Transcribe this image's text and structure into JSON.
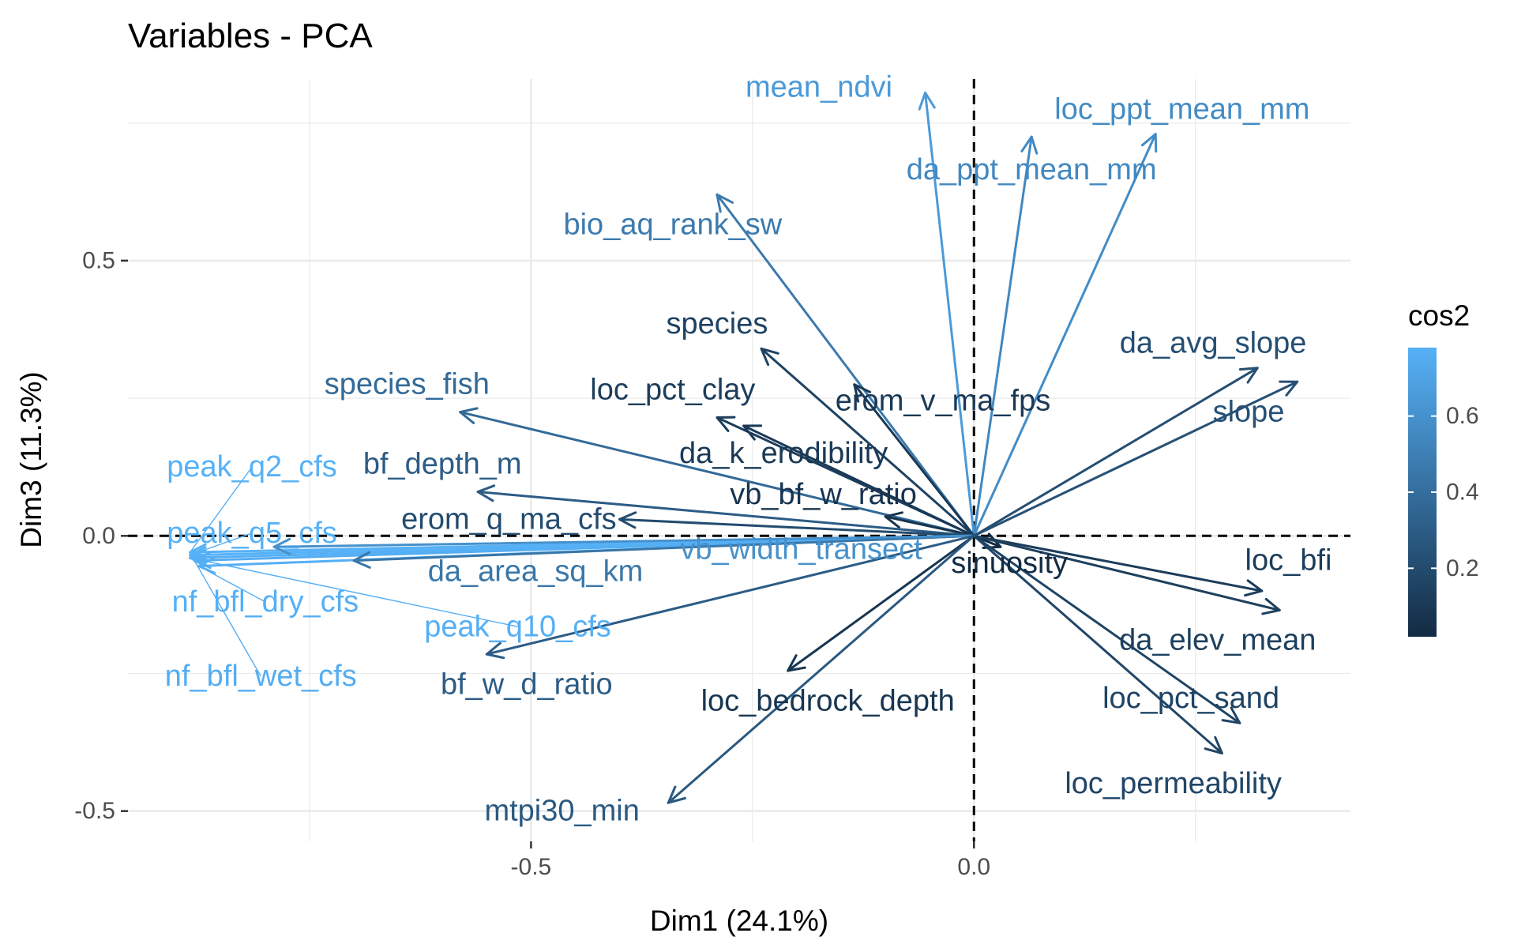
{
  "chart_data": {
    "type": "scatter",
    "title": "Variables - PCA",
    "xlabel": "Dim1 (24.1%)",
    "ylabel": "Dim3 (11.3%)",
    "xlim": [
      -0.955,
      0.425
    ],
    "ylim": [
      -0.555,
      0.83
    ],
    "x_ticks": [
      -0.5,
      0.0
    ],
    "x_tick_labels": [
      "-0.5",
      "0.0"
    ],
    "y_ticks": [
      -0.5,
      0.0,
      0.5
    ],
    "y_tick_labels": [
      "-0.5",
      "0.0",
      "0.5"
    ],
    "grid": true,
    "reference_lines": [
      0,
      0
    ],
    "legend": {
      "title": "cos2",
      "position": "right",
      "type": "colorbar",
      "range": [
        0.02,
        0.78
      ],
      "ticks": [
        0.2,
        0.4,
        0.6
      ],
      "tick_labels": [
        "0.2",
        "0.4",
        "0.6"
      ],
      "color_low": "#132B43",
      "color_high": "#56B1F7"
    },
    "variables": [
      {
        "name": "mean_ndvi",
        "x": -0.055,
        "y": 0.805,
        "cos2": 0.65,
        "label_x": -0.175,
        "label_y": 0.815
      },
      {
        "name": "loc_ppt_mean_mm",
        "x": 0.205,
        "y": 0.73,
        "cos2": 0.57,
        "label_x": 0.235,
        "label_y": 0.775
      },
      {
        "name": "da_ppt_mean_mm",
        "x": 0.065,
        "y": 0.725,
        "cos2": 0.55,
        "label_x": 0.065,
        "label_y": 0.665
      },
      {
        "name": "bio_aq_rank_sw",
        "x": -0.29,
        "y": 0.62,
        "cos2": 0.47,
        "label_x": -0.34,
        "label_y": 0.565
      },
      {
        "name": "species",
        "x": -0.24,
        "y": 0.34,
        "cos2": 0.15,
        "label_x": -0.29,
        "label_y": 0.385
      },
      {
        "name": "species_fish",
        "x": -0.58,
        "y": 0.225,
        "cos2": 0.38,
        "label_x": -0.64,
        "label_y": 0.275
      },
      {
        "name": "loc_pct_clay",
        "x": -0.29,
        "y": 0.215,
        "cos2": 0.12,
        "label_x": -0.34,
        "label_y": 0.265
      },
      {
        "name": "erom_v_ma_fps",
        "x": -0.135,
        "y": 0.275,
        "cos2": 0.1,
        "label_x": -0.035,
        "label_y": 0.245
      },
      {
        "name": "da_k_erodibility",
        "x": -0.26,
        "y": 0.2,
        "cos2": 0.1,
        "label_x": -0.215,
        "label_y": 0.15
      },
      {
        "name": "vb_bf_w_ratio",
        "x": -0.1,
        "y": 0.035,
        "cos2": 0.07,
        "label_x": -0.17,
        "label_y": 0.075
      },
      {
        "name": "bf_depth_m",
        "x": -0.56,
        "y": 0.08,
        "cos2": 0.3,
        "label_x": -0.6,
        "label_y": 0.13
      },
      {
        "name": "erom_q_ma_cfs",
        "x": -0.4,
        "y": 0.03,
        "cos2": 0.2,
        "label_x": -0.525,
        "label_y": 0.03
      },
      {
        "name": "peak_q2_cfs",
        "x": -0.885,
        "y": -0.03,
        "cos2": 0.78,
        "label_x": -0.815,
        "label_y": 0.125,
        "leader": true
      },
      {
        "name": "peak_q5_cfs",
        "x": -0.885,
        "y": -0.035,
        "cos2": 0.78,
        "label_x": -0.815,
        "label_y": 0.005,
        "leader": true
      },
      {
        "name": "nf_bfl_dry_cfs",
        "x": -0.875,
        "y": -0.055,
        "cos2": 0.77,
        "label_x": -0.8,
        "label_y": -0.12,
        "leader": true
      },
      {
        "name": "nf_bfl_wet_cfs",
        "x": -0.88,
        "y": -0.045,
        "cos2": 0.76,
        "label_x": -0.805,
        "label_y": -0.255,
        "leader": true
      },
      {
        "name": "peak_q10_cfs",
        "x": -0.885,
        "y": -0.04,
        "cos2": 0.77,
        "label_x": -0.515,
        "label_y": -0.165,
        "leader": true
      },
      {
        "name": "da_area_sq_km",
        "x": -0.7,
        "y": -0.045,
        "cos2": 0.45,
        "label_x": -0.495,
        "label_y": -0.065
      },
      {
        "name": "vb_width_transect",
        "x": -0.79,
        "y": -0.02,
        "cos2": 0.6,
        "label_x": -0.195,
        "label_y": -0.025
      },
      {
        "name": "bf_w_d_ratio",
        "x": -0.55,
        "y": -0.215,
        "cos2": 0.3,
        "label_x": -0.505,
        "label_y": -0.27
      },
      {
        "name": "loc_bedrock_depth",
        "x": -0.21,
        "y": -0.245,
        "cos2": 0.08,
        "label_x": -0.165,
        "label_y": -0.3
      },
      {
        "name": "mtpi30_min",
        "x": -0.345,
        "y": -0.485,
        "cos2": 0.28,
        "label_x": -0.465,
        "label_y": -0.5
      },
      {
        "name": "sinuosity",
        "x": 0.03,
        "y": -0.02,
        "cos2": 0.02,
        "label_x": 0.04,
        "label_y": -0.05
      },
      {
        "name": "loc_bfi",
        "x": 0.325,
        "y": -0.1,
        "cos2": 0.12,
        "label_x": 0.355,
        "label_y": -0.045
      },
      {
        "name": "da_elev_mean",
        "x": 0.345,
        "y": -0.135,
        "cos2": 0.14,
        "label_x": 0.275,
        "label_y": -0.19
      },
      {
        "name": "loc_pct_sand",
        "x": 0.3,
        "y": -0.34,
        "cos2": 0.16,
        "label_x": 0.245,
        "label_y": -0.295
      },
      {
        "name": "loc_permeability",
        "x": 0.28,
        "y": -0.395,
        "cos2": 0.17,
        "label_x": 0.225,
        "label_y": -0.45
      },
      {
        "name": "da_avg_slope",
        "x": 0.32,
        "y": 0.305,
        "cos2": 0.22,
        "label_x": 0.27,
        "label_y": 0.35
      },
      {
        "name": "slope",
        "x": 0.365,
        "y": 0.28,
        "cos2": 0.23,
        "label_x": 0.31,
        "label_y": 0.225
      }
    ]
  }
}
